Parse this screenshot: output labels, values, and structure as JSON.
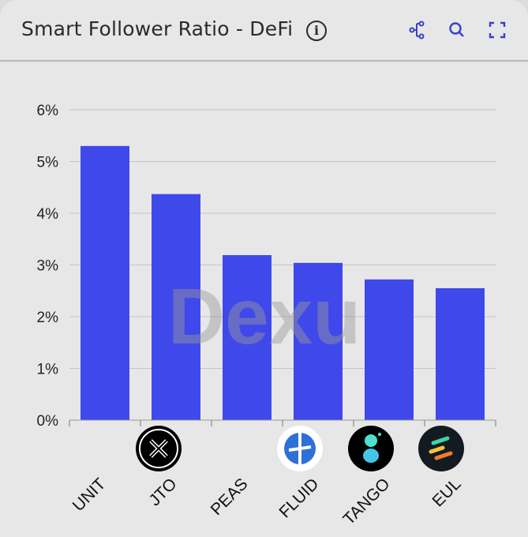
{
  "header": {
    "title": "Smart Follower Ratio - DeFi"
  },
  "toolbar": {
    "icons": [
      "share-nodes-icon",
      "zoom-icon",
      "fullscreen-icon"
    ]
  },
  "watermark": "Dexu",
  "colors": {
    "bar": "#3f48ea",
    "grid": "#c4c4c4",
    "icon": "#3a3fd0"
  },
  "chart_data": {
    "type": "bar",
    "title": "Smart Follower Ratio - DeFi",
    "xlabel": "",
    "ylabel": "",
    "categories": [
      "UNIT",
      "JTO",
      "PEAS",
      "FLUID",
      "TANGO",
      "EUL"
    ],
    "values": [
      5.3,
      4.37,
      3.19,
      3.04,
      2.72,
      2.55
    ],
    "unit": "%",
    "ylim": [
      0,
      6
    ],
    "yticks": [
      "0%",
      "1%",
      "2%",
      "3%",
      "4%",
      "5%",
      "6%"
    ],
    "grid": true,
    "legend": "none"
  }
}
